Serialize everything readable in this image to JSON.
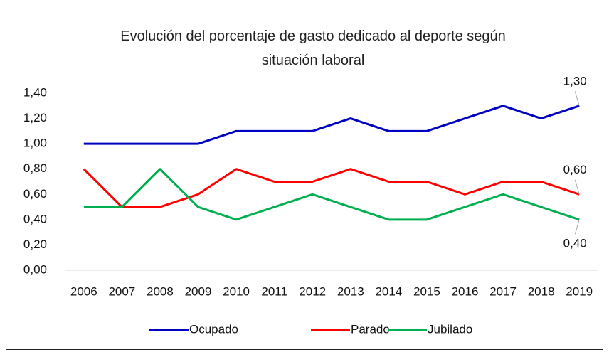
{
  "chart_data": {
    "type": "line",
    "title": "Evolución del porcentaje de gasto dedicado al deporte según situación laboral",
    "categories": [
      "2006",
      "2007",
      "2008",
      "2009",
      "2010",
      "2011",
      "2012",
      "2013",
      "2014",
      "2015",
      "2016",
      "2017",
      "2018",
      "2019"
    ],
    "series": [
      {
        "name": "Ocupado",
        "color": "#0000c0",
        "values": [
          1.0,
          1.0,
          1.0,
          1.0,
          1.1,
          1.1,
          1.1,
          1.2,
          1.1,
          1.1,
          1.2,
          1.3,
          1.2,
          1.3
        ],
        "value_labels": [
          null,
          null,
          null,
          null,
          null,
          null,
          null,
          null,
          null,
          null,
          null,
          null,
          null,
          "1,30"
        ]
      },
      {
        "name": "Parado",
        "color": "#ff0000",
        "values": [
          0.8,
          0.5,
          0.5,
          0.6,
          0.8,
          0.7,
          0.7,
          0.8,
          0.7,
          0.7,
          0.6,
          0.7,
          0.7,
          0.6
        ],
        "value_labels": [
          null,
          null,
          null,
          null,
          null,
          null,
          null,
          null,
          null,
          null,
          null,
          null,
          null,
          "0,60"
        ]
      },
      {
        "name": "Jubilado",
        "color": "#00b050",
        "values": [
          0.5,
          0.5,
          0.8,
          0.5,
          0.4,
          0.5,
          0.6,
          0.5,
          0.4,
          0.4,
          0.5,
          0.6,
          0.5,
          0.4
        ],
        "value_labels": [
          null,
          null,
          null,
          null,
          null,
          null,
          null,
          null,
          null,
          null,
          null,
          null,
          null,
          "0,40"
        ]
      }
    ],
    "ylim": [
      0,
      1.4
    ],
    "yticks": [
      {
        "value": 0,
        "label": "0,00"
      },
      {
        "value": 0.2,
        "label": "0,20"
      },
      {
        "value": 0.4,
        "label": "0,40"
      },
      {
        "value": 0.6,
        "label": "0,60"
      },
      {
        "value": 0.8,
        "label": "0,80"
      },
      {
        "value": 1.0,
        "label": "1,00"
      },
      {
        "value": 1.2,
        "label": "1,20"
      },
      {
        "value": 1.4,
        "label": "1,40"
      }
    ],
    "grid": false,
    "legend": "bottom"
  }
}
